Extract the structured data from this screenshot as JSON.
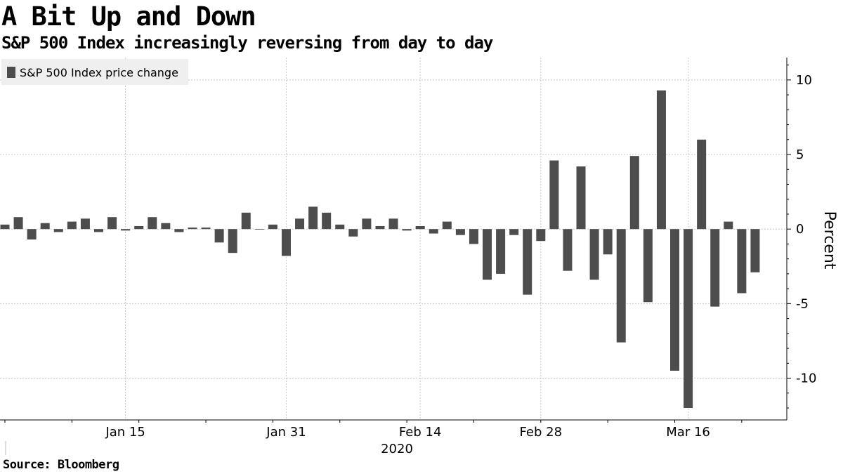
{
  "title": "A Bit Up and Down",
  "subtitle": "S&P 500 Index increasingly reversing from day to day",
  "source": "Source: Bloomberg",
  "colors": {
    "bar": "#4d4d4d",
    "grid": "#c8c8c8",
    "legend_bg": "#efefef"
  },
  "chart_data": {
    "type": "bar",
    "legend": [
      "S&P 500 Index price change"
    ],
    "ylabel": "Percent",
    "ylim": [
      -12.8,
      11.5
    ],
    "yticks": [
      10,
      5,
      0,
      -5,
      -10
    ],
    "ytick_labels": [
      "10",
      "5",
      "0",
      "-5",
      "-10"
    ],
    "grid": true,
    "legend_position": "top-left",
    "x_year_label": "2020",
    "xtick_labels": [
      {
        "label": "Jan 15",
        "index": 9
      },
      {
        "label": "Jan 31",
        "index": 21
      },
      {
        "label": "Feb 14",
        "index": 31
      },
      {
        "label": "Feb 28",
        "index": 40
      },
      {
        "label": "Mar 16",
        "index": 51
      }
    ],
    "series": [
      {
        "name": "S&P 500 Index price change",
        "values": [
          0.3,
          0.8,
          -0.7,
          0.4,
          -0.2,
          0.5,
          0.7,
          -0.2,
          0.8,
          -0.1,
          0.2,
          0.8,
          0.4,
          -0.2,
          0.1,
          0.1,
          -0.9,
          -1.6,
          1.1,
          0.0,
          0.3,
          -1.8,
          0.7,
          1.5,
          1.1,
          0.3,
          -0.5,
          0.7,
          0.2,
          0.7,
          -0.1,
          0.2,
          -0.3,
          0.5,
          -0.4,
          -1.0,
          -3.4,
          -3.0,
          -0.4,
          -4.4,
          -0.8,
          4.6,
          -2.8,
          4.2,
          -3.4,
          -1.7,
          -7.6,
          4.9,
          -4.9,
          9.3,
          -9.5,
          -12.0,
          6.0,
          -5.2,
          0.5,
          -4.3,
          -2.9
        ]
      }
    ]
  }
}
